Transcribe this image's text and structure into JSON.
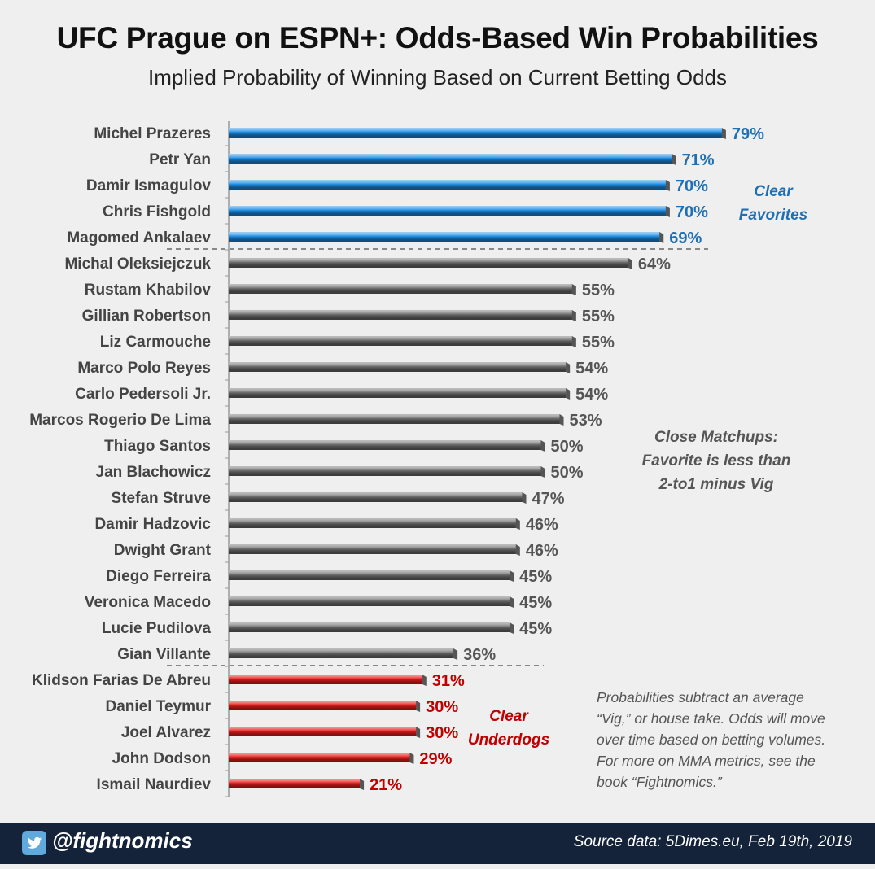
{
  "title": "UFC Prague on ESPN+: Odds-Based Win Probabilities",
  "subtitle": "Implied Probability of Winning Based on Current Betting Odds",
  "notes": {
    "favorites": [
      "Clear",
      "Favorites"
    ],
    "close": [
      "Close Matchups:",
      "Favorite is less than",
      "2-to1 minus Vig"
    ],
    "underdogs": [
      "Clear",
      "Underdogs"
    ],
    "vig": [
      "Probabilities subtract an average",
      "“Vig,” or house take. Odds will move",
      "over time based on betting volumes.",
      "For more on MMA metrics, see the",
      "book “Fightnomics.”"
    ]
  },
  "footer": {
    "handle": "@fightnomics",
    "source": "Source data: 5Dimes.eu, Feb 19th, 2019",
    "bg_color": "#14233a"
  },
  "colors": {
    "favorite": "#1f8ee6",
    "close": "#6d6d6d",
    "underdog": "#e81d1d",
    "favorite_label": "#1f6fb5",
    "close_label": "#555555",
    "underdog_label": "#c00000"
  },
  "chart_data": {
    "type": "bar",
    "orientation": "horizontal",
    "xlim": [
      0,
      100
    ],
    "categories": [
      "Michel Prazeres",
      "Petr Yan",
      "Damir Ismagulov",
      "Chris Fishgold",
      "Magomed Ankalaev",
      "Michal Oleksiejczuk",
      "Rustam Khabilov",
      "Gillian Robertson",
      "Liz Carmouche",
      "Marco Polo Reyes",
      "Carlo Pedersoli Jr.",
      "Marcos Rogerio De Lima",
      "Thiago Santos",
      "Jan Blachowicz",
      "Stefan Struve",
      "Damir Hadzovic",
      "Dwight Grant",
      "Diego Ferreira",
      "Veronica Macedo",
      "Lucie Pudilova",
      "Gian Villante",
      "Klidson Farias De Abreu",
      "Daniel Teymur",
      "Joel Alvarez",
      "John Dodson",
      "Ismail Naurdiev"
    ],
    "values": [
      79,
      71,
      70,
      70,
      69,
      64,
      55,
      55,
      55,
      54,
      54,
      53,
      50,
      50,
      47,
      46,
      46,
      45,
      45,
      45,
      36,
      31,
      30,
      30,
      29,
      21
    ],
    "labels": [
      "79%",
      "71%",
      "70%",
      "70%",
      "69%",
      "64%",
      "55%",
      "55%",
      "55%",
      "54%",
      "54%",
      "53%",
      "50%",
      "50%",
      "47%",
      "46%",
      "46%",
      "45%",
      "45%",
      "45%",
      "36%",
      "31%",
      "30%",
      "30%",
      "29%",
      "21%"
    ],
    "groups": [
      "favorite",
      "favorite",
      "favorite",
      "favorite",
      "favorite",
      "close",
      "close",
      "close",
      "close",
      "close",
      "close",
      "close",
      "close",
      "close",
      "close",
      "close",
      "close",
      "close",
      "close",
      "close",
      "close",
      "underdog",
      "underdog",
      "underdog",
      "underdog",
      "underdog"
    ]
  }
}
